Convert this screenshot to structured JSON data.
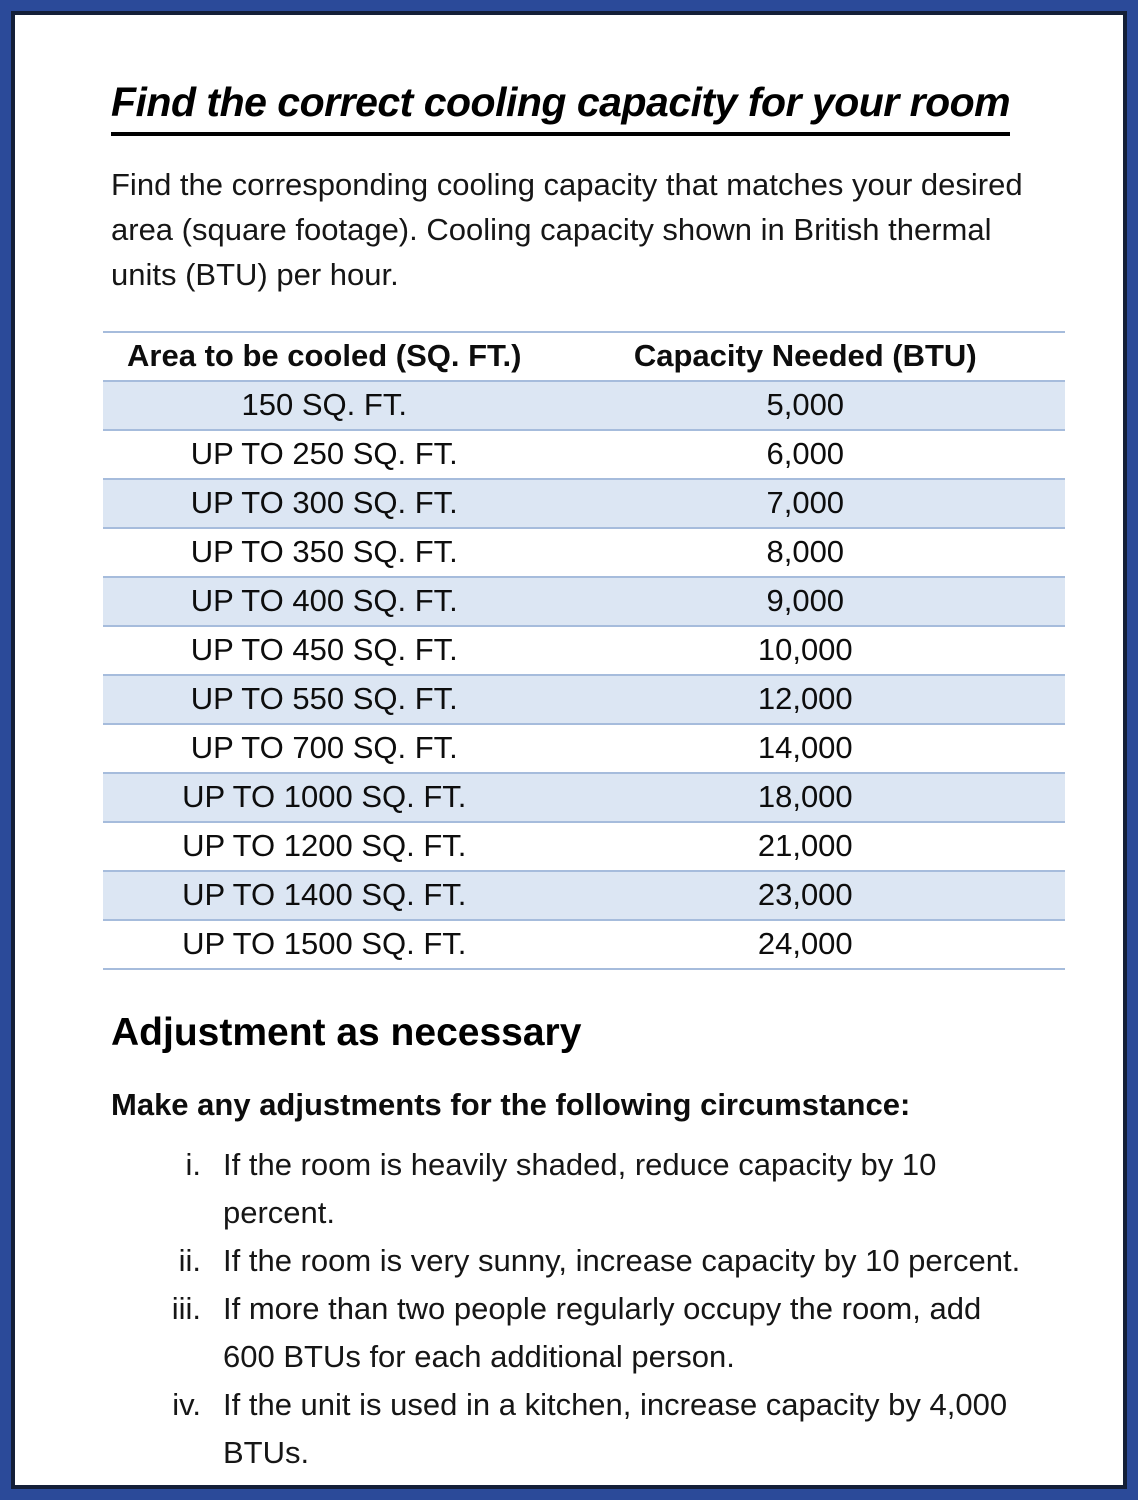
{
  "title": "Find the correct cooling capacity for your room",
  "intro_lines": [
    "Find the corresponding cooling capacity that matches your desired",
    "area (square footage). Cooling capacity shown in British thermal",
    "units (BTU) per hour."
  ],
  "table": {
    "headers": [
      "Area to be cooled (SQ. FT.)",
      "Capacity Needed (BTU)"
    ],
    "rows": [
      [
        "150 SQ. FT.",
        "5,000"
      ],
      [
        "UP TO 250 SQ. FT.",
        "6,000"
      ],
      [
        "UP TO 300 SQ. FT.",
        "7,000"
      ],
      [
        "UP TO 350 SQ. FT.",
        "8,000"
      ],
      [
        "UP TO 400 SQ. FT.",
        "9,000"
      ],
      [
        "UP TO 450 SQ. FT.",
        "10,000"
      ],
      [
        "UP TO 550 SQ. FT.",
        "12,000"
      ],
      [
        "UP TO 700 SQ. FT.",
        "14,000"
      ],
      [
        "UP TO 1000 SQ. FT.",
        "18,000"
      ],
      [
        "UP TO 1200 SQ. FT.",
        "21,000"
      ],
      [
        "UP TO 1400 SQ. FT.",
        "23,000"
      ],
      [
        "UP TO 1500 SQ. FT.",
        "24,000"
      ]
    ]
  },
  "adjustments": {
    "heading": "Adjustment as necessary",
    "intro": "Make any adjustments for the following circumstance:",
    "items": [
      {
        "marker": "i.",
        "lines": [
          "If the room is heavily shaded, reduce capacity by 10",
          "percent."
        ]
      },
      {
        "marker": "ii.",
        "lines": [
          "If the room is very sunny, increase capacity by 10 percent."
        ]
      },
      {
        "marker": "iii.",
        "lines": [
          "If more than two people regularly occupy the room, add",
          "600 BTUs for each additional person."
        ]
      },
      {
        "marker": "iv.",
        "lines": [
          "If the unit is used in a kitchen, increase capacity by 4,000",
          "BTUs."
        ]
      }
    ]
  },
  "colors": {
    "border_outer": "#2b4a99",
    "border_inner": "#141f38",
    "table_stripe": "#dce6f3",
    "table_line": "#a6bcdc",
    "text": "#111111"
  }
}
